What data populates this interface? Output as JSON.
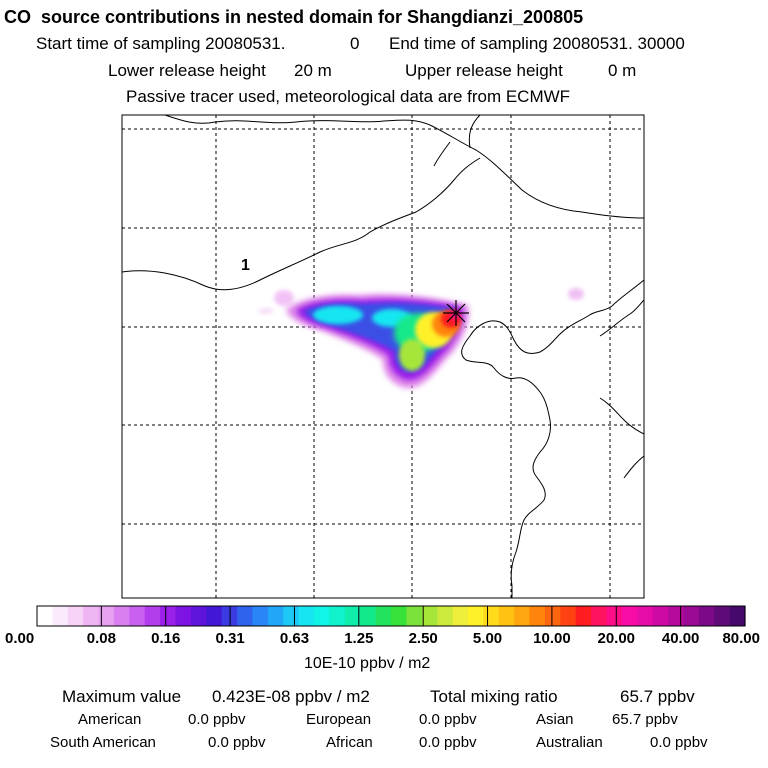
{
  "header": {
    "title": "CO  source contributions in nested domain for Shangdianzi_200805",
    "start_label": "Start time of sampling 20080531.",
    "start_hour": "0",
    "end_label": "End time of sampling 20080531. 30000",
    "lower_label": "Lower release height",
    "lower_value": "20 m",
    "upper_label": "Upper release height",
    "upper_value": "0 m",
    "tracer_note": "Passive tracer used, meteorological data are from ECMWF"
  },
  "chart_data": {
    "type": "heatmap",
    "title": "CO  source contributions in nested domain for Shangdianzi_200805",
    "region_label": "1",
    "receptor_symbol": "star",
    "grid_lines": "dashed",
    "colorbar": {
      "unit_label": "10E-10 ppbv / m2",
      "tick_labels": [
        "0.00",
        "0.08",
        "0.16",
        "0.31",
        "0.63",
        "1.25",
        "2.50",
        "5.00",
        "10.00",
        "20.00",
        "40.00",
        "80.00"
      ],
      "colors": [
        "#ffffff",
        "#fbeafb",
        "#f6d3f7",
        "#efb5f3",
        "#e8a0f0",
        "#d97ff0",
        "#c960ef",
        "#b13ded",
        "#9a1fe9",
        "#7d14e3",
        "#5f14dc",
        "#4317d6",
        "#3a3be3",
        "#2f63ee",
        "#2a86f5",
        "#22a6f8",
        "#1ec8f7",
        "#17e6f2",
        "#10f5e6",
        "#0ff2cc",
        "#10eeab",
        "#12e98a",
        "#22e35c",
        "#38e03a",
        "#7ae23a",
        "#a6e63a",
        "#ccea3b",
        "#eeef3a",
        "#fff02a",
        "#ffdb1c",
        "#ffc213",
        "#ffa50f",
        "#ff850d",
        "#ff640e",
        "#ff4212",
        "#ff1c20",
        "#ff1361",
        "#ff0d88",
        "#f70ca6",
        "#e50ca8",
        "#cf0aa4",
        "#b50a9c",
        "#9a0a94",
        "#7c0a88",
        "#5e0a78",
        "#44096a"
      ]
    }
  },
  "summary": {
    "max_label": "Maximum value",
    "max_value": "0.423E-08 ppbv / m2",
    "total_label": "Total mixing ratio",
    "total_value": "65.7 ppbv",
    "regions": [
      {
        "name": "American",
        "value": "0.0 ppbv"
      },
      {
        "name": "European",
        "value": "0.0 ppbv"
      },
      {
        "name": "Asian",
        "value": "65.7 ppbv"
      },
      {
        "name": "South American",
        "value": "0.0 ppbv"
      },
      {
        "name": "African",
        "value": "0.0 ppbv"
      },
      {
        "name": "Australian",
        "value": "0.0 ppbv"
      }
    ]
  }
}
